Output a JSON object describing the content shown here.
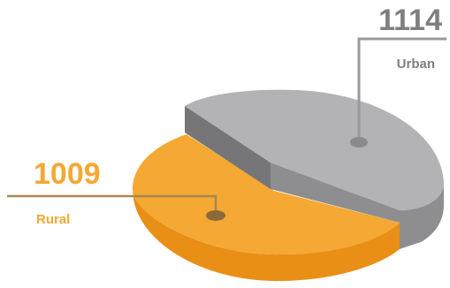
{
  "chart_data": {
    "type": "pie",
    "title": "",
    "slices": [
      {
        "label": "Urban",
        "value": 1114
      },
      {
        "label": "Rural",
        "value": 1009
      }
    ]
  },
  "colors": {
    "urban_top": "#b3b3b5",
    "urban_side": "#8e8e90",
    "urban_side_dark": "#767678",
    "urban_text": "#7f7f81",
    "rural_top": "#f5a833",
    "rural_side": "#e98f16",
    "rural_text": "#f5a833",
    "dot_urban": "#8a8a8c",
    "dot_rural": "#8a6a3a",
    "callout_urban": "#9a9a9c",
    "callout_rural": "#a8884f"
  }
}
